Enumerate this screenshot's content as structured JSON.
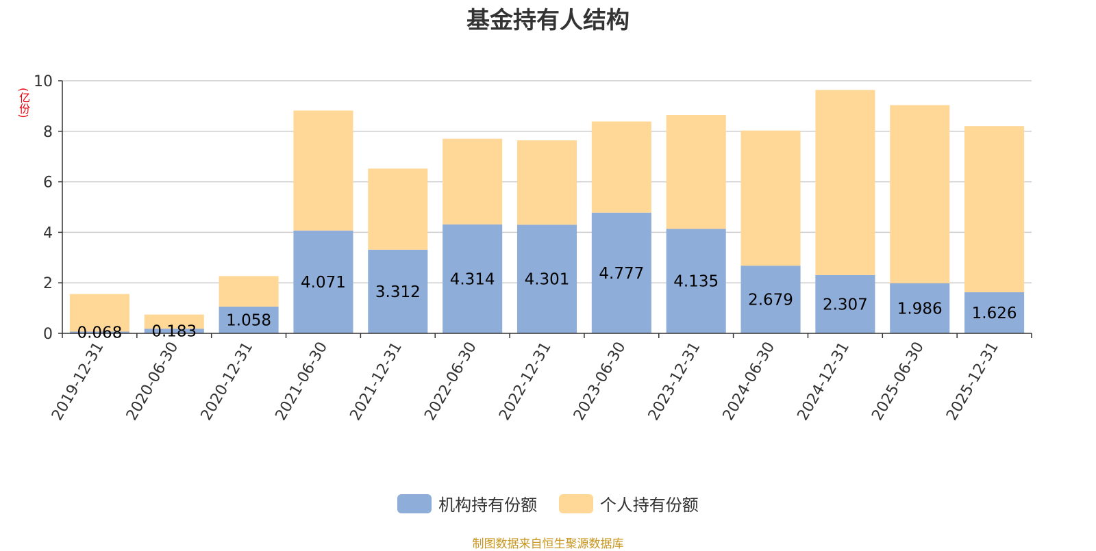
{
  "chart_data": {
    "type": "bar",
    "stacked": true,
    "title": "基金持有人结构",
    "unit": "(亿份)",
    "categories": [
      "2019-12-31",
      "2020-06-30",
      "2020-12-31",
      "2021-06-30",
      "2021-12-31",
      "2022-06-30",
      "2022-12-31",
      "2023-06-30",
      "2023-12-31",
      "2024-06-30",
      "2024-12-31",
      "2025-06-30",
      "2025-12-31"
    ],
    "series": [
      {
        "name": "机构持有份额",
        "color": "#8eadd9",
        "labels": [
          "0.068",
          "0.183",
          "1.058",
          "4.071",
          "3.312",
          "4.314",
          "4.301",
          "4.777",
          "4.135",
          "2.679",
          "2.307",
          "1.986",
          "1.626"
        ],
        "values": [
          0.068,
          0.183,
          1.058,
          4.071,
          3.312,
          4.314,
          4.301,
          4.777,
          4.135,
          2.679,
          2.307,
          1.986,
          1.626
        ]
      },
      {
        "name": "个人持有份额",
        "color": "#ffd898",
        "values": [
          1.49,
          0.56,
          1.21,
          4.75,
          3.21,
          3.39,
          3.34,
          3.61,
          4.51,
          5.35,
          7.33,
          7.05,
          6.58
        ]
      }
    ],
    "yticks": [
      "0",
      "2",
      "4",
      "6",
      "8",
      "10"
    ],
    "ylim": [
      0,
      10
    ],
    "grid": true,
    "legend_position": "bottom-center"
  },
  "footer": {
    "source": "制图数据来自恒生聚源数据库"
  }
}
